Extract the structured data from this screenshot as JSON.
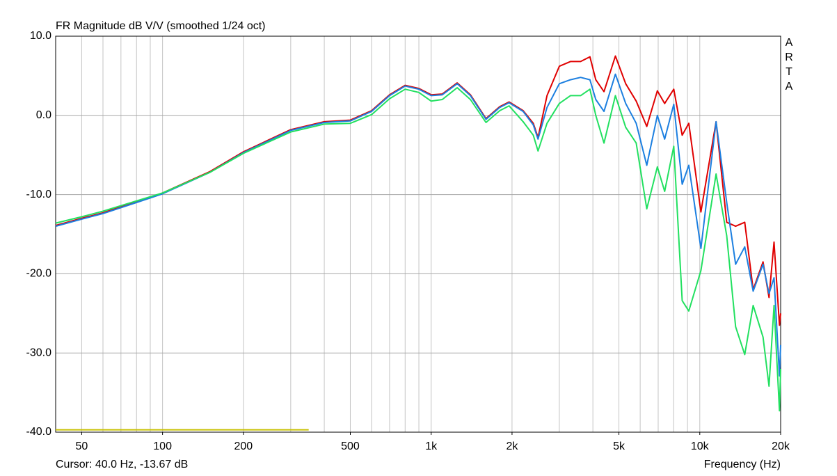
{
  "chart_data": {
    "type": "line",
    "title": "FR Magnitude dB V/V (smoothed 1/24 oct)",
    "brand": "ARTA",
    "cursor": "Cursor: 40.0 Hz, -13.67 dB",
    "x_label": "Frequency (Hz)",
    "log_x": true,
    "grid": true,
    "xlim": [
      40,
      20000
    ],
    "ylim": [
      -40,
      10
    ],
    "xticks": [
      50,
      100,
      200,
      500,
      {
        "value": 1000,
        "label": "1k"
      },
      {
        "value": 2000,
        "label": "2k"
      },
      {
        "value": 5000,
        "label": "5k"
      },
      {
        "value": 10000,
        "label": "10k"
      },
      {
        "value": 20000,
        "label": "20k"
      }
    ],
    "xgrid": [
      50,
      60,
      70,
      80,
      90,
      100,
      200,
      300,
      400,
      500,
      600,
      700,
      800,
      900,
      1000,
      2000,
      3000,
      4000,
      5000,
      6000,
      7000,
      8000,
      9000,
      10000
    ],
    "yticks": [
      {
        "value": 10,
        "label": "10.0"
      },
      {
        "value": 0,
        "label": "0.0"
      },
      {
        "value": -10,
        "label": "-10.0"
      },
      {
        "value": -20,
        "label": "-20.0"
      },
      {
        "value": -30,
        "label": "-30.0"
      },
      {
        "value": -40,
        "label": "-40.0"
      }
    ],
    "x": [
      40,
      50,
      60,
      80,
      100,
      150,
      200,
      300,
      400,
      500,
      600,
      700,
      800,
      900,
      1000,
      1100,
      1250,
      1400,
      1600,
      1800,
      1950,
      2200,
      2400,
      2500,
      2700,
      3000,
      3300,
      3600,
      3900,
      4100,
      4400,
      4850,
      5300,
      5800,
      6350,
      6950,
      7400,
      8000,
      8600,
      9100,
      10100,
      11500,
      12600,
      13600,
      14700,
      15800,
      17200,
      18100,
      18900,
      19800,
      20000
    ],
    "series": [
      {
        "color": "#e00000",
        "values": [
          -13.9,
          -13.0,
          -12.3,
          -10.9,
          -9.8,
          -7.1,
          -4.6,
          -1.8,
          -0.8,
          -0.6,
          0.6,
          2.6,
          3.8,
          3.4,
          2.6,
          2.7,
          4.1,
          2.6,
          -0.4,
          1.1,
          1.7,
          0.6,
          -1.0,
          -2.8,
          2.5,
          6.2,
          6.8,
          6.8,
          7.4,
          4.5,
          3.0,
          7.5,
          4.0,
          1.8,
          -1.4,
          3.1,
          1.5,
          3.3,
          -2.5,
          -1.0,
          -12.2,
          -0.8,
          -13.5,
          -14.0,
          -13.5,
          -22.0,
          -18.5,
          -23.0,
          -16.0,
          -26.5,
          -25.0
        ]
      },
      {
        "color": "#1c7fe0",
        "values": [
          -14.0,
          -13.1,
          -12.4,
          -11.0,
          -9.9,
          -7.2,
          -4.7,
          -1.9,
          -0.9,
          -0.7,
          0.5,
          2.5,
          3.7,
          3.3,
          2.5,
          2.6,
          4.0,
          2.5,
          -0.5,
          1.0,
          1.6,
          0.5,
          -1.2,
          -3.0,
          1.0,
          4.0,
          4.5,
          4.8,
          4.5,
          2.0,
          0.5,
          5.2,
          1.5,
          -1.0,
          -6.3,
          0.0,
          -3.0,
          1.4,
          -8.7,
          -6.3,
          -16.8,
          -0.8,
          -11.0,
          -18.8,
          -16.6,
          -22.2,
          -18.8,
          -22.5,
          -20.5,
          -32.9,
          -29.0
        ]
      },
      {
        "color": "#22e060",
        "values": [
          -13.6,
          -12.8,
          -12.1,
          -10.8,
          -9.8,
          -7.2,
          -4.8,
          -2.1,
          -1.1,
          -1.0,
          0.1,
          2.1,
          3.3,
          2.9,
          1.8,
          2.0,
          3.5,
          2.0,
          -0.9,
          0.6,
          1.2,
          -0.8,
          -2.5,
          -4.5,
          -1.0,
          1.5,
          2.5,
          2.5,
          3.3,
          0.0,
          -3.5,
          2.5,
          -1.5,
          -3.5,
          -11.8,
          -6.5,
          -9.6,
          -3.9,
          -23.4,
          -24.7,
          -19.6,
          -7.4,
          -15.2,
          -26.7,
          -30.2,
          -24.0,
          -28.0,
          -34.2,
          -24.0,
          -37.3,
          -32.0
        ]
      }
    ],
    "reference_line": {
      "color": "#c8c000",
      "x": [
        40,
        350
      ],
      "y": -39.7
    }
  }
}
